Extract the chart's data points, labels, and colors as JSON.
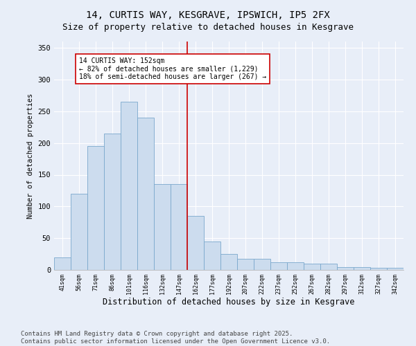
{
  "title": "14, CURTIS WAY, KESGRAVE, IPSWICH, IP5 2FX",
  "subtitle": "Size of property relative to detached houses in Kesgrave",
  "xlabel": "Distribution of detached houses by size in Kesgrave",
  "ylabel": "Number of detached properties",
  "categories": [
    "41sqm",
    "56sqm",
    "71sqm",
    "86sqm",
    "101sqm",
    "116sqm",
    "132sqm",
    "147sqm",
    "162sqm",
    "177sqm",
    "192sqm",
    "207sqm",
    "222sqm",
    "237sqm",
    "252sqm",
    "267sqm",
    "282sqm",
    "297sqm",
    "312sqm",
    "327sqm",
    "342sqm"
  ],
  "values": [
    20,
    120,
    195,
    215,
    265,
    240,
    135,
    135,
    85,
    45,
    25,
    18,
    17,
    12,
    12,
    10,
    10,
    4,
    4,
    3,
    3
  ],
  "bar_color": "#ccdcee",
  "bar_edge_color": "#7aA8cc",
  "vline_x_index": 7,
  "vline_color": "#cc0000",
  "annotation_text": "14 CURTIS WAY: 152sqm\n← 82% of detached houses are smaller (1,229)\n18% of semi-detached houses are larger (267) →",
  "annotation_box_color": "#ffffff",
  "annotation_box_edge_color": "#cc0000",
  "ylim": [
    0,
    360
  ],
  "yticks": [
    0,
    50,
    100,
    150,
    200,
    250,
    300,
    350
  ],
  "background_color": "#e8eef8",
  "plot_background_color": "#e8eef8",
  "title_fontsize": 10,
  "footer_text": "Contains HM Land Registry data © Crown copyright and database right 2025.\nContains public sector information licensed under the Open Government Licence v3.0.",
  "footer_fontsize": 6.5
}
